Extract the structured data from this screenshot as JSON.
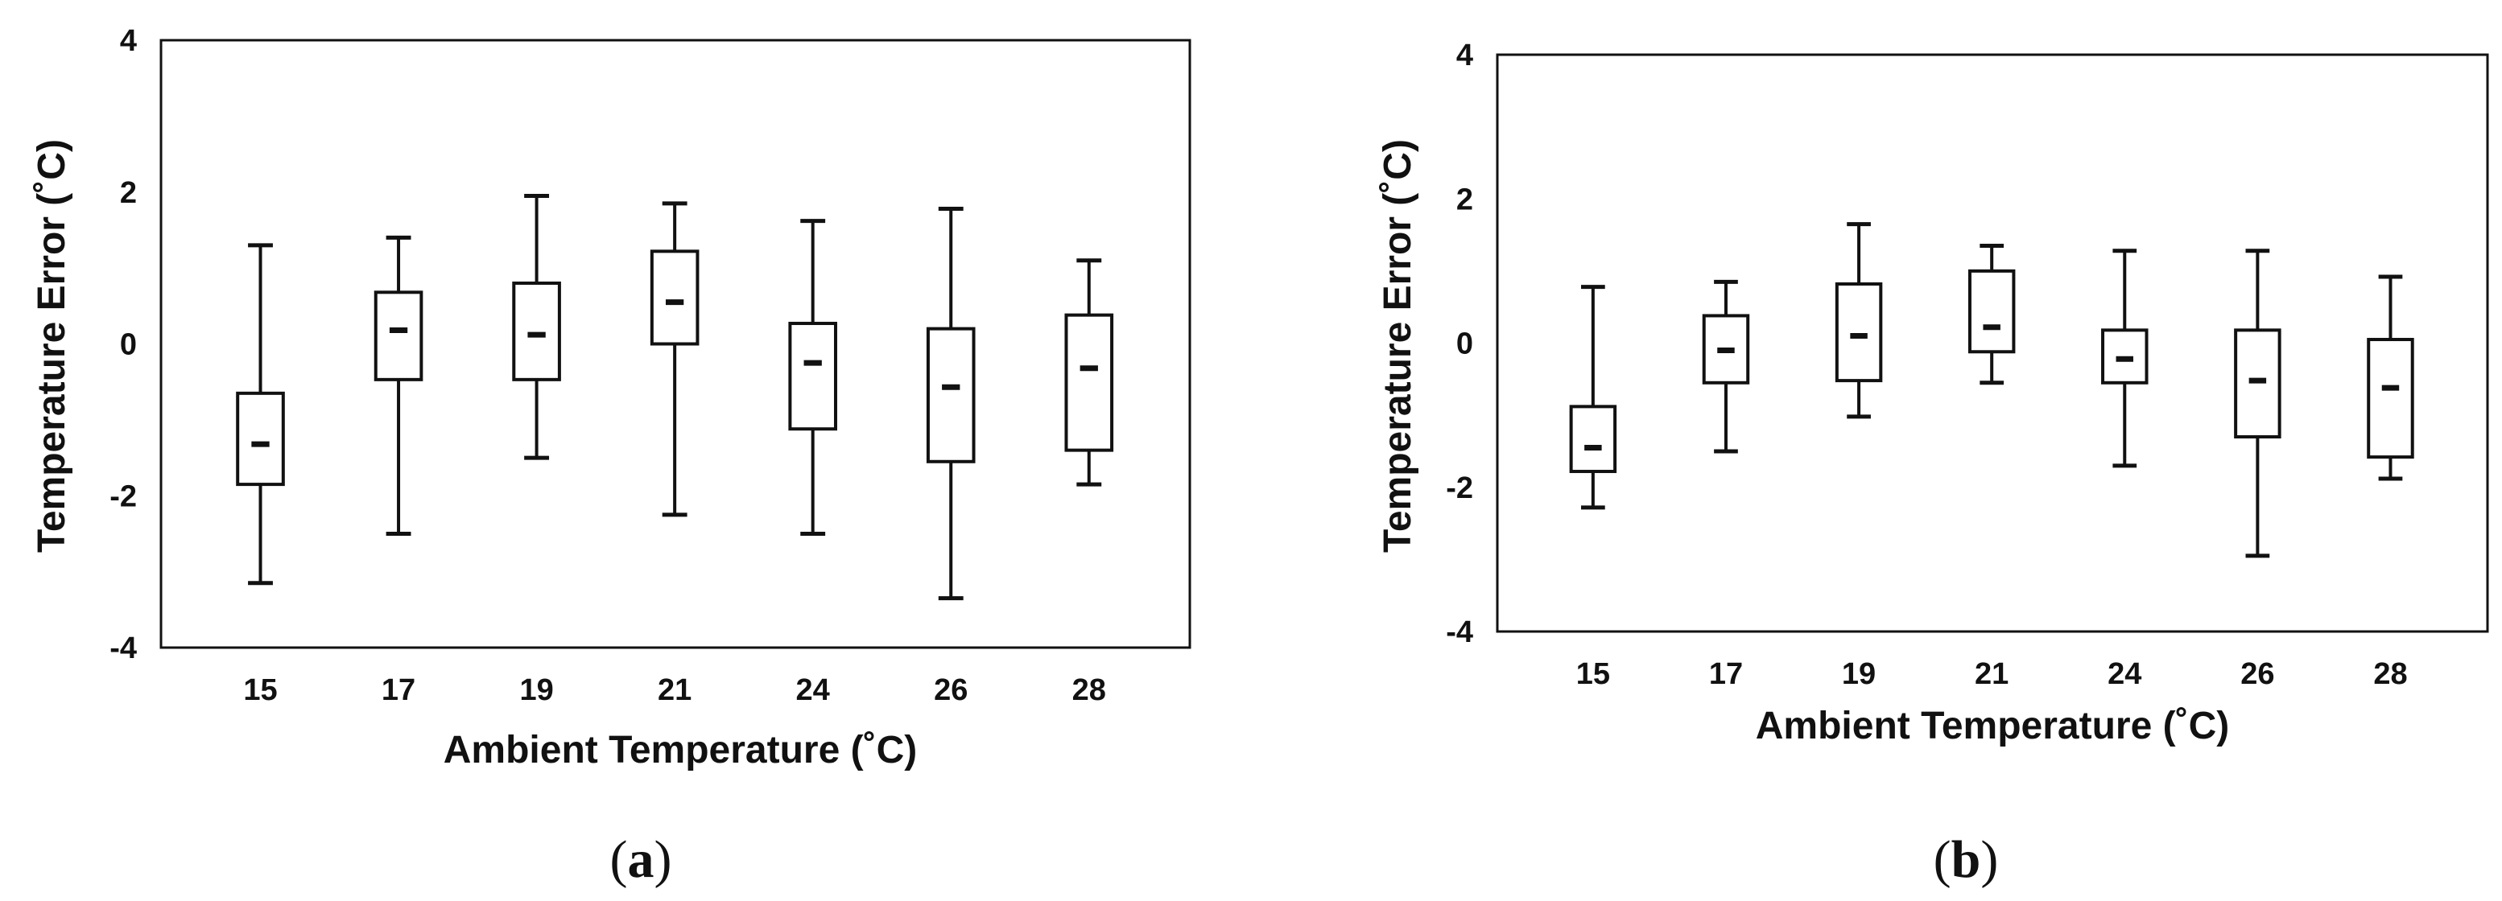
{
  "chart_data": [
    {
      "type": "box",
      "panel_label": "(a)",
      "panel_letter": "a",
      "xlabel": "Ambient Temperature (˚C)",
      "ylabel": "Temperature Error (˚C)",
      "ylim": [
        -4,
        4
      ],
      "yticks": [
        "4",
        "2",
        "0",
        "-2",
        "-4"
      ],
      "categories": [
        "15",
        "17",
        "19",
        "21",
        "24",
        "26",
        "28"
      ],
      "boxes": [
        {
          "min": -3.15,
          "q1": -1.85,
          "median": -1.32,
          "q3": -0.65,
          "max": 1.3
        },
        {
          "min": -2.5,
          "q1": -0.47,
          "median": 0.18,
          "q3": 0.68,
          "max": 1.4
        },
        {
          "min": -1.5,
          "q1": -0.47,
          "median": 0.12,
          "q3": 0.8,
          "max": 1.95
        },
        {
          "min": -2.25,
          "q1": 0.0,
          "median": 0.55,
          "q3": 1.22,
          "max": 1.85
        },
        {
          "min": -2.5,
          "q1": -1.12,
          "median": -0.25,
          "q3": 0.27,
          "max": 1.62
        },
        {
          "min": -3.35,
          "q1": -1.55,
          "median": -0.57,
          "q3": 0.2,
          "max": 1.78
        },
        {
          "min": -1.85,
          "q1": -1.4,
          "median": -0.32,
          "q3": 0.38,
          "max": 1.1
        }
      ],
      "grid": false
    },
    {
      "type": "box",
      "panel_label": "(b)",
      "panel_letter": "b",
      "xlabel": "Ambient Temperature (˚C)",
      "ylabel": "Temperature Error (˚C)",
      "ylim": [
        -4,
        4
      ],
      "yticks": [
        "4",
        "2",
        "0",
        "-2",
        "-4"
      ],
      "categories": [
        "15",
        "17",
        "19",
        "21",
        "24",
        "26",
        "28"
      ],
      "boxes": [
        {
          "min": -2.28,
          "q1": -1.78,
          "median": -1.45,
          "q3": -0.88,
          "max": 0.78
        },
        {
          "min": -1.5,
          "q1": -0.55,
          "median": -0.1,
          "q3": 0.38,
          "max": 0.85
        },
        {
          "min": -1.02,
          "q1": -0.52,
          "median": 0.1,
          "q3": 0.82,
          "max": 1.65
        },
        {
          "min": -0.55,
          "q1": -0.12,
          "median": 0.22,
          "q3": 1.0,
          "max": 1.35
        },
        {
          "min": -1.7,
          "q1": -0.55,
          "median": -0.22,
          "q3": 0.18,
          "max": 1.28
        },
        {
          "min": -2.95,
          "q1": -1.3,
          "median": -0.52,
          "q3": 0.18,
          "max": 1.28
        },
        {
          "min": -1.88,
          "q1": -1.58,
          "median": -0.62,
          "q3": 0.05,
          "max": 0.92
        }
      ],
      "grid": false
    }
  ]
}
